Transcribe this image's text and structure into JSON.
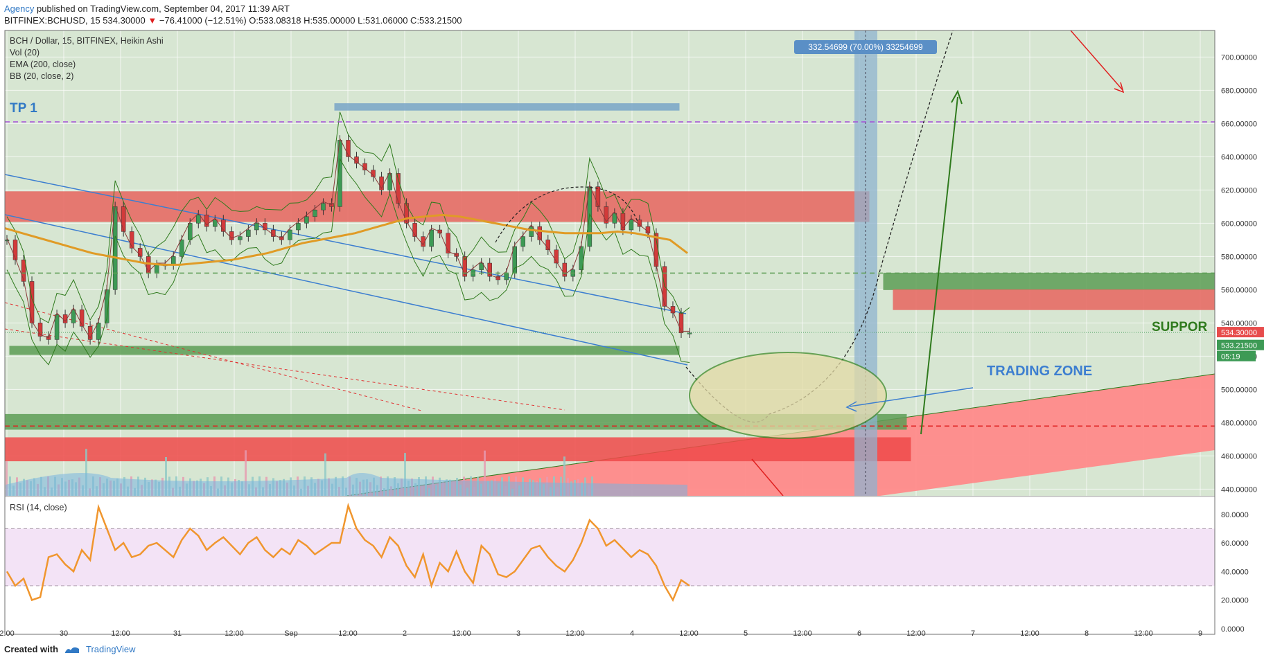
{
  "header": {
    "author": "Agency",
    "published": "published on TradingView.com, September 04, 2017 11:39 ART",
    "ticker_line": "BITFINEX:BCHUSD, 15  534.30000",
    "change": "−76.41000 (−12.51%)",
    "ohlc": "O:533.08318 H:535.00000 L:531.06000 C:533.21500"
  },
  "legend": {
    "symbol": "BCH / Dollar, 15, BITFINEX, Heikin Ashi",
    "vol": "Vol (20)",
    "ema": "EMA (200, close)",
    "bb": "BB (20, close, 2)",
    "rsi": "RSI (14, close)"
  },
  "annotations": {
    "tp1": "TP 1",
    "support": "SUPPOR",
    "trading_zone": "TRADING ZONE",
    "measure": "332.54699 (70.00%) 33254699"
  },
  "price_labels": {
    "last": "534.30000",
    "close": "533.21500",
    "countdown": "05:19"
  },
  "colors": {
    "bg_green": "#d7e6d2",
    "bg_purple": "#f3e3f6",
    "red_zone": "#e8655f",
    "green_zone": "#5e9e56",
    "blue_zone": "#7aa6c8",
    "ema": "#e09b26",
    "rsi": "#f0962e",
    "channel": "#3c7ed0",
    "purple_line": "#a64fd9",
    "arrow_green": "#2f7a1d",
    "arrow_red": "#e02020"
  },
  "footer": {
    "created_with": "Created with",
    "tradingview": "TradingView"
  },
  "chart_data": [
    {
      "type": "candlestick",
      "title": "BCH / Dollar, 15, BITFINEX, Heikin Ashi",
      "x_ticks": [
        "2:00",
        "30",
        "12:00",
        "31",
        "12:00",
        "Sep",
        "12:00",
        "2",
        "12:00",
        "3",
        "12:00",
        "4",
        "12:00",
        "5",
        "12:00",
        "6",
        "12:00",
        "7",
        "12:00",
        "8",
        "12:00",
        "9"
      ],
      "y_ticks": [
        700,
        680,
        660,
        640,
        620,
        600,
        580,
        560,
        540,
        520,
        500,
        480,
        460,
        440
      ],
      "ylim": [
        436,
        716
      ],
      "price_path": [
        590,
        578,
        565,
        540,
        532,
        530,
        545,
        540,
        548,
        538,
        530,
        540,
        560,
        610,
        595,
        585,
        580,
        570,
        575,
        575,
        580,
        590,
        600,
        605,
        598,
        602,
        595,
        590,
        592,
        596,
        600,
        596,
        592,
        590,
        596,
        600,
        604,
        608,
        612,
        610,
        650,
        640,
        636,
        632,
        628,
        620,
        630,
        612,
        600,
        592,
        586,
        596,
        594,
        582,
        580,
        568,
        572,
        576,
        568,
        566,
        570,
        586,
        592,
        598,
        590,
        584,
        576,
        568,
        572,
        586,
        622,
        610,
        600,
        606,
        596,
        602,
        598,
        594,
        574,
        550,
        546,
        534,
        534
      ],
      "ema": [
        597,
        594,
        591,
        588,
        585,
        582,
        580,
        578,
        576,
        575,
        575,
        576,
        577,
        578,
        580,
        582,
        585,
        588,
        590,
        592,
        594,
        597,
        600,
        603,
        604,
        605,
        604,
        602,
        600,
        598,
        596,
        595,
        594,
        594,
        594,
        595,
        594,
        592,
        590,
        582
      ],
      "ema_start_day": 0,
      "horizontal_levels": [
        {
          "label": "TP 1",
          "price": 661,
          "style": "dashed",
          "color": "#a64fd9"
        },
        {
          "price": 570,
          "style": "dashed",
          "color": "#5e9e56"
        },
        {
          "price": 478,
          "style": "dashed",
          "color": "#e02020"
        }
      ],
      "zones": [
        {
          "color": "blue",
          "from": 668,
          "to": 672
        },
        {
          "color": "red",
          "from": 601,
          "to": 619
        },
        {
          "color": "green",
          "from": 521,
          "to": 526
        },
        {
          "color": "green",
          "from": 476,
          "to": 485
        },
        {
          "color": "red",
          "from": 457,
          "to": 471
        },
        {
          "color": "green",
          "from": 560,
          "to": 570
        },
        {
          "color": "red",
          "from": 548,
          "to": 560
        }
      ],
      "last_price": 534.3,
      "close_price": 533.215
    },
    {
      "type": "line",
      "title": "RSI (14, close)",
      "y_ticks": [
        80,
        60,
        40,
        20,
        0
      ],
      "ylim": [
        -4,
        92
      ],
      "levels": [
        70,
        30
      ],
      "values": [
        40,
        30,
        35,
        20,
        22,
        50,
        52,
        45,
        40,
        55,
        48,
        85,
        70,
        55,
        60,
        50,
        52,
        58,
        60,
        55,
        50,
        62,
        70,
        65,
        55,
        60,
        64,
        58,
        52,
        60,
        64,
        55,
        50,
        56,
        52,
        62,
        58,
        52,
        56,
        60,
        60,
        86,
        70,
        62,
        58,
        50,
        64,
        58,
        44,
        36,
        52,
        30,
        46,
        40,
        54,
        40,
        32,
        58,
        52,
        38,
        36,
        40,
        48,
        56,
        58,
        50,
        44,
        40,
        48,
        60,
        76,
        70,
        58,
        62,
        56,
        50,
        55,
        52,
        44,
        30,
        20,
        34,
        30
      ]
    }
  ]
}
